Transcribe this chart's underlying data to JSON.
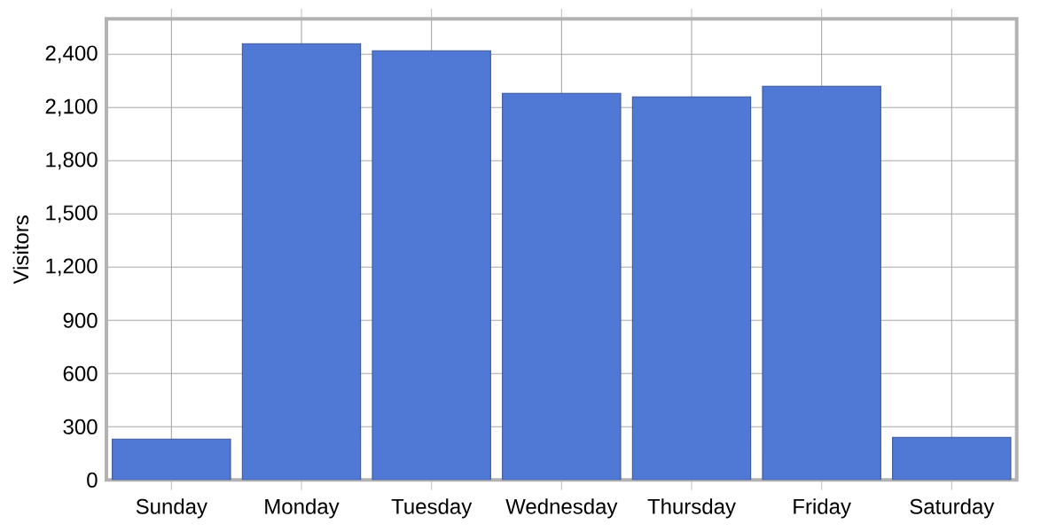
{
  "chart_data": {
    "type": "bar",
    "ylabel": "Visitors",
    "categories": [
      "Sunday",
      "Monday",
      "Tuesday",
      "Wednesday",
      "Thursday",
      "Friday",
      "Saturday"
    ],
    "values": [
      230,
      2460,
      2420,
      2180,
      2160,
      2220,
      240
    ],
    "color": "#5079d6",
    "ylim": [
      0,
      2600
    ],
    "yticks": [
      0,
      300,
      600,
      900,
      {
        "value": 1200,
        "label": "1,200"
      },
      {
        "value": 1500,
        "label": "1,500"
      },
      {
        "value": 1800,
        "label": "1,800"
      },
      {
        "value": 2100,
        "label": "2,100"
      },
      {
        "value": 2400,
        "label": "2,400"
      }
    ],
    "grid": true
  }
}
